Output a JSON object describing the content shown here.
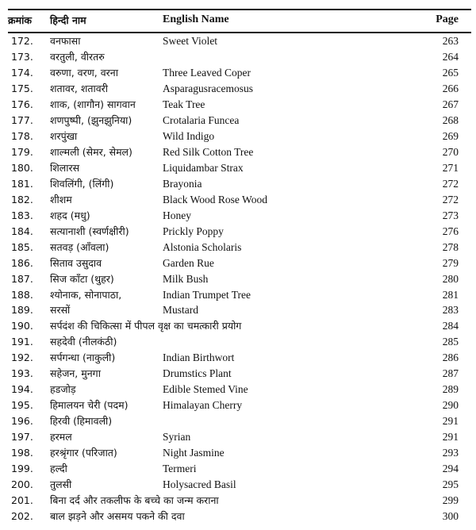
{
  "header": {
    "serial": "क्रमांक",
    "hindi": "हिन्दी नाम",
    "english": "English Name",
    "page": "Page"
  },
  "rows": [
    {
      "n": "172.",
      "hi": "वनफासा",
      "en": "Sweet Violet",
      "p": "263"
    },
    {
      "n": "173.",
      "hi": "वरतुली, वीरतरु",
      "en": "",
      "p": "264"
    },
    {
      "n": "174.",
      "hi": "वरुणा, वरण, वरना",
      "en": "Three Leaved Coper",
      "p": "265"
    },
    {
      "n": "175.",
      "hi": "शतावर, शतावरी",
      "en": "Asparagusracemosus",
      "p": "266"
    },
    {
      "n": "176.",
      "hi": "शाक, (शागौन) सागवान",
      "en": "Teak Tree",
      "p": "267"
    },
    {
      "n": "177.",
      "hi": "शणपुष्पी, (झुनझुनिया)",
      "en": "Crotalaria Funcea",
      "p": "268"
    },
    {
      "n": "178.",
      "hi": "शरपुंखा",
      "en": "Wild Indigo",
      "p": "269"
    },
    {
      "n": "179.",
      "hi": "शाल्मली (सेमर, सेमल)",
      "en": "Red Silk Cotton Tree",
      "p": "270"
    },
    {
      "n": "180.",
      "hi": "शिलारस",
      "en": "Liquidambar Strax",
      "p": "271"
    },
    {
      "n": "181.",
      "hi": "शिवलिंगी, (लिंगी)",
      "en": "Brayonia",
      "p": "272"
    },
    {
      "n": "182.",
      "hi": "शीशम",
      "en": "Black Wood Rose Wood",
      "p": "272"
    },
    {
      "n": "183.",
      "hi": "शहद (मधु)",
      "en": "Honey",
      "p": "273"
    },
    {
      "n": "184.",
      "hi": "सत्यानाशी (स्वर्णक्षीरी)",
      "en": "Prickly Poppy",
      "p": "276"
    },
    {
      "n": "185.",
      "hi": "सतवड़ (आँवला)",
      "en": "Alstonia Scholaris",
      "p": "278"
    },
    {
      "n": "186.",
      "hi": "सिताव उसुदाव",
      "en": "Garden Rue",
      "p": "279"
    },
    {
      "n": "187.",
      "hi": "सिज काँटा (थुहर)",
      "en": "Milk Bush",
      "p": "280"
    },
    {
      "n": "188.",
      "hi": "श्योनाक, सोनापाठा,",
      "en": "Indian Trumpet Tree",
      "p": "281"
    },
    {
      "n": "189.",
      "hi": "सरसों",
      "en": "Mustard",
      "p": "283"
    },
    {
      "n": "190.",
      "hi": "सर्पदंश की चिकित्सा में पीपल वृक्ष का चमत्कारी प्रयोग",
      "en": "",
      "p": "284"
    },
    {
      "n": "191.",
      "hi": "सहदेवी (नीलकंठी)",
      "en": "",
      "p": "285"
    },
    {
      "n": "192.",
      "hi": "सर्पगन्धा (नाकुली)",
      "en": "Indian Birthwort",
      "p": "286"
    },
    {
      "n": "193.",
      "hi": "सहेजन, मुनगा",
      "en": "Drumstics Plant",
      "p": "287"
    },
    {
      "n": "194.",
      "hi": "हडजोड़",
      "en": "Edible Stemed Vine",
      "p": "289"
    },
    {
      "n": "195.",
      "hi": "हिमालयन चेरी (पदम)",
      "en": "Himalayan Cherry",
      "p": "290"
    },
    {
      "n": "196.",
      "hi": "हिरवी (हिमावली)",
      "en": "",
      "p": "291"
    },
    {
      "n": "197.",
      "hi": "हरमल",
      "en": "Syrian",
      "p": "291"
    },
    {
      "n": "198.",
      "hi": "हरश्रृंगार (परिजात)",
      "en": "Night Jasmine",
      "p": "293"
    },
    {
      "n": "199.",
      "hi": "हल्दी",
      "en": "Termeri",
      "p": "294"
    },
    {
      "n": "200.",
      "hi": "तुलसी",
      "en": "Holysacred Basil",
      "p": "295"
    },
    {
      "n": "201.",
      "hi": "बिना दर्द और तकलीफ के बच्चे का जन्म कराना",
      "en": "",
      "p": "299"
    },
    {
      "n": "202.",
      "hi": "बाल झड़ने और असमय पकने की दवा",
      "en": "",
      "p": "300"
    }
  ]
}
